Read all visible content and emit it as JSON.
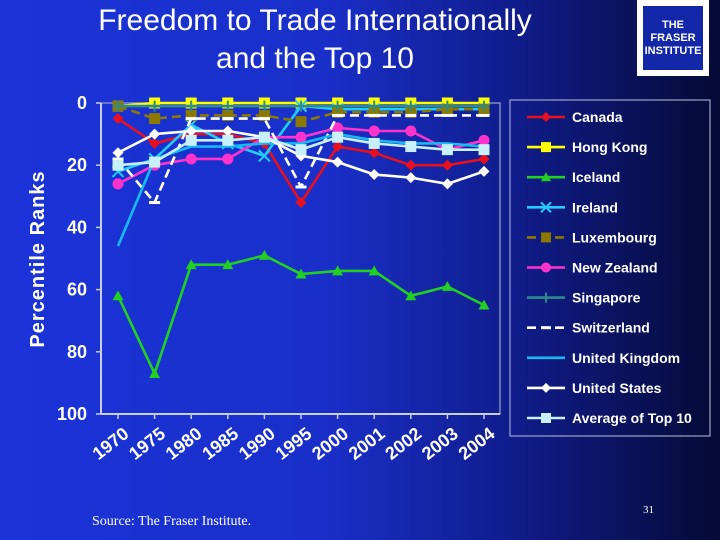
{
  "slide": {
    "title_line1": "Freedom to Trade Internationally",
    "title_line2": "and the Top 10",
    "logo_line1": "THE FRASER",
    "logo_line2": "INSTITUTE",
    "source": "Source: The Fraser Institute.",
    "page_number": "31"
  },
  "chart_data": {
    "type": "line",
    "title": "",
    "xlabel": "",
    "ylabel": "Percentile Ranks",
    "x": [
      "1970",
      "1975",
      "1980",
      "1985",
      "1990",
      "1995",
      "2000",
      "2001",
      "2002",
      "2003",
      "2004"
    ],
    "yticks": [
      "0",
      "20",
      "40",
      "60",
      "80",
      "100"
    ],
    "ylim": [
      0,
      100
    ],
    "y_inverted": true,
    "grid": false,
    "legend_position": "right",
    "series": [
      {
        "name": "Canada",
        "color": "#e8101c",
        "marker": "diamond",
        "dash": false,
        "values": [
          5,
          13,
          10,
          10,
          13,
          32,
          14,
          16,
          20,
          20,
          18
        ]
      },
      {
        "name": "Hong Kong",
        "color": "#ffff00",
        "marker": "square",
        "dash": false,
        "values": [
          1,
          0,
          0,
          0,
          0,
          0,
          0,
          0,
          0,
          0,
          0
        ]
      },
      {
        "name": "Iceland",
        "color": "#22d022",
        "marker": "triangle",
        "dash": false,
        "values": [
          62,
          87,
          52,
          52,
          49,
          55,
          54,
          54,
          62,
          59,
          65
        ]
      },
      {
        "name": "Ireland",
        "color": "#22ccff",
        "marker": "x",
        "dash": false,
        "values": [
          22,
          18,
          7,
          13,
          17,
          1,
          2,
          2,
          2,
          2,
          2
        ]
      },
      {
        "name": "Luxembourg",
        "color": "#8c7a00",
        "marker": "square",
        "dash": true,
        "values": [
          1,
          5,
          4,
          4,
          4,
          6,
          3,
          3,
          3,
          2,
          2
        ]
      },
      {
        "name": "New Zealand",
        "color": "#ff33cc",
        "marker": "circle",
        "dash": false,
        "values": [
          26,
          20,
          18,
          18,
          11,
          11,
          8,
          9,
          9,
          15,
          12
        ]
      },
      {
        "name": "Singapore",
        "color": "#2e8b8b",
        "marker": "plus",
        "dash": false,
        "values": [
          1,
          1,
          1,
          1,
          1,
          1,
          1,
          1,
          1,
          1,
          1
        ]
      },
      {
        "name": "Switzerland",
        "color": "#ffffff",
        "marker": "dash",
        "dash": true,
        "values": [
          18,
          32,
          5,
          5,
          5,
          27,
          4,
          4,
          4,
          4,
          4
        ]
      },
      {
        "name": "United Kingdom",
        "color": "#18b8f0",
        "marker": "none",
        "dash": false,
        "values": [
          46,
          18,
          14,
          14,
          13,
          13,
          10,
          12,
          13,
          13,
          14
        ]
      },
      {
        "name": "United States",
        "color": "#ffffff",
        "marker": "diamond",
        "dash": false,
        "values": [
          16,
          10,
          9,
          9,
          11,
          17,
          19,
          23,
          24,
          26,
          22
        ]
      },
      {
        "name": "Average of Top 10",
        "color": "#c8f0f8",
        "marker": "square",
        "dash": false,
        "values": [
          20,
          19,
          12,
          12,
          11,
          15,
          11,
          13,
          14,
          15,
          15
        ]
      }
    ]
  }
}
